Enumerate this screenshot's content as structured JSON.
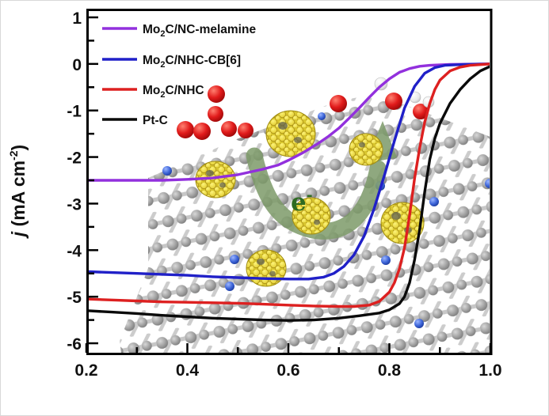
{
  "legend": {
    "items": [
      {
        "prefix": "Mo",
        "sub": "2",
        "rest": "C/NC-melamine",
        "color": "#9230dd"
      },
      {
        "prefix": "Mo",
        "sub": "2",
        "rest": "C/NHC-CB[6]",
        "color": "#2020c8"
      },
      {
        "prefix": "Mo",
        "sub": "2",
        "rest": "C/NHC",
        "color": "#dd2020"
      },
      {
        "prefix": "Pt-C",
        "sub": "",
        "rest": "",
        "color": "#0a0a0a"
      }
    ]
  },
  "axes": {
    "y_label": {
      "italic": "j",
      "mid": " (mA cm",
      "sup": "-2",
      "end": ")"
    }
  },
  "annotations": {
    "electron": {
      "base": "e",
      "sup": "-"
    }
  },
  "chart_data": {
    "type": "line",
    "title": "",
    "xlabel": "",
    "ylabel": "j (mA cm-2)",
    "xlim": [
      0.2,
      1.0
    ],
    "ylim": [
      -6.254,
      1.169
    ],
    "grid": false,
    "legend_position": "top-left",
    "x_ticks": {
      "major": [
        0.2,
        0.4,
        0.6,
        0.8,
        1.0
      ],
      "labels": [
        "0.2",
        "0.4",
        "0.6",
        "0.8",
        "1.0"
      ],
      "minor": [
        0.3,
        0.5,
        0.7,
        0.9
      ]
    },
    "y_ticks": {
      "major": [
        1,
        0,
        -1,
        -2,
        -3,
        -4,
        -5,
        -6
      ],
      "labels": [
        "1",
        "0",
        "-1",
        "-2",
        "-3",
        "-4",
        "-5",
        "-6"
      ],
      "minor": [
        0.5,
        -0.5,
        -1.5,
        -2.5,
        -3.5,
        -4.5,
        -5.5
      ]
    },
    "series": [
      {
        "name": "Mo2C/NC-melamine",
        "color": "#9230dd",
        "points": [
          [
            0.2,
            -2.5
          ],
          [
            0.25,
            -2.5
          ],
          [
            0.3,
            -2.5
          ],
          [
            0.35,
            -2.5
          ],
          [
            0.4,
            -2.48
          ],
          [
            0.45,
            -2.45
          ],
          [
            0.5,
            -2.38
          ],
          [
            0.55,
            -2.26
          ],
          [
            0.58,
            -2.17
          ],
          [
            0.6,
            -2.07
          ],
          [
            0.63,
            -1.9
          ],
          [
            0.66,
            -1.7
          ],
          [
            0.68,
            -1.55
          ],
          [
            0.7,
            -1.38
          ],
          [
            0.72,
            -1.17
          ],
          [
            0.74,
            -0.95
          ],
          [
            0.76,
            -0.72
          ],
          [
            0.78,
            -0.5
          ],
          [
            0.8,
            -0.32
          ],
          [
            0.82,
            -0.18
          ],
          [
            0.84,
            -0.1
          ],
          [
            0.86,
            -0.05
          ],
          [
            0.88,
            -0.03
          ],
          [
            0.92,
            -0.01
          ],
          [
            1.0,
            0.0
          ]
        ]
      },
      {
        "name": "Mo2C/NHC-CB[6]",
        "color": "#2020c8",
        "points": [
          [
            0.2,
            -4.46
          ],
          [
            0.25,
            -4.48
          ],
          [
            0.3,
            -4.5
          ],
          [
            0.35,
            -4.52
          ],
          [
            0.4,
            -4.54
          ],
          [
            0.45,
            -4.57
          ],
          [
            0.5,
            -4.59
          ],
          [
            0.55,
            -4.61
          ],
          [
            0.6,
            -4.62
          ],
          [
            0.64,
            -4.62
          ],
          [
            0.67,
            -4.58
          ],
          [
            0.69,
            -4.5
          ],
          [
            0.71,
            -4.35
          ],
          [
            0.73,
            -4.1
          ],
          [
            0.75,
            -3.7
          ],
          [
            0.77,
            -3.1
          ],
          [
            0.79,
            -2.4
          ],
          [
            0.81,
            -1.65
          ],
          [
            0.83,
            -0.95
          ],
          [
            0.85,
            -0.48
          ],
          [
            0.87,
            -0.2
          ],
          [
            0.89,
            -0.08
          ],
          [
            0.91,
            -0.03
          ],
          [
            0.95,
            -0.01
          ],
          [
            1.0,
            0.0
          ]
        ]
      },
      {
        "name": "Mo2C/NHC",
        "color": "#dd2020",
        "points": [
          [
            0.2,
            -5.05
          ],
          [
            0.25,
            -5.07
          ],
          [
            0.3,
            -5.09
          ],
          [
            0.35,
            -5.11
          ],
          [
            0.4,
            -5.12
          ],
          [
            0.45,
            -5.13
          ],
          [
            0.5,
            -5.14
          ],
          [
            0.55,
            -5.16
          ],
          [
            0.6,
            -5.18
          ],
          [
            0.65,
            -5.2
          ],
          [
            0.7,
            -5.21
          ],
          [
            0.73,
            -5.21
          ],
          [
            0.76,
            -5.18
          ],
          [
            0.78,
            -5.1
          ],
          [
            0.8,
            -4.9
          ],
          [
            0.81,
            -4.7
          ],
          [
            0.82,
            -4.4
          ],
          [
            0.83,
            -3.95
          ],
          [
            0.84,
            -3.25
          ],
          [
            0.85,
            -2.45
          ],
          [
            0.86,
            -1.8
          ],
          [
            0.87,
            -1.25
          ],
          [
            0.88,
            -0.85
          ],
          [
            0.89,
            -0.55
          ],
          [
            0.9,
            -0.35
          ],
          [
            0.92,
            -0.15
          ],
          [
            0.94,
            -0.07
          ],
          [
            0.96,
            -0.03
          ],
          [
            1.0,
            0.0
          ]
        ]
      },
      {
        "name": "Pt-C",
        "color": "#0a0a0a",
        "points": [
          [
            0.2,
            -5.3
          ],
          [
            0.25,
            -5.33
          ],
          [
            0.3,
            -5.36
          ],
          [
            0.35,
            -5.4
          ],
          [
            0.4,
            -5.43
          ],
          [
            0.45,
            -5.46
          ],
          [
            0.5,
            -5.48
          ],
          [
            0.55,
            -5.5
          ],
          [
            0.6,
            -5.51
          ],
          [
            0.65,
            -5.5
          ],
          [
            0.7,
            -5.46
          ],
          [
            0.74,
            -5.41
          ],
          [
            0.78,
            -5.35
          ],
          [
            0.8,
            -5.28
          ],
          [
            0.82,
            -5.15
          ],
          [
            0.83,
            -5.0
          ],
          [
            0.84,
            -4.7
          ],
          [
            0.85,
            -4.2
          ],
          [
            0.86,
            -3.55
          ],
          [
            0.87,
            -2.75
          ],
          [
            0.88,
            -2.05
          ],
          [
            0.89,
            -1.6
          ],
          [
            0.9,
            -1.28
          ],
          [
            0.92,
            -0.85
          ],
          [
            0.94,
            -0.55
          ],
          [
            0.96,
            -0.32
          ],
          [
            0.98,
            -0.15
          ],
          [
            1.0,
            -0.05
          ]
        ]
      }
    ]
  }
}
